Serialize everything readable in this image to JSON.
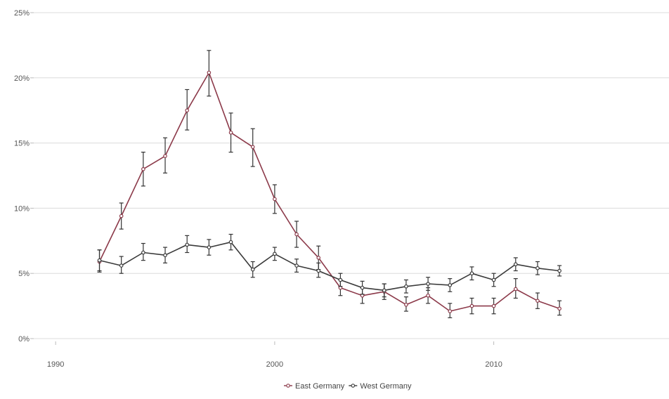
{
  "chart_data": {
    "type": "line",
    "title": "",
    "xlabel": "",
    "ylabel": "",
    "xlim": [
      1989,
      2018
    ],
    "ylim": [
      0,
      25
    ],
    "x_ticks": [
      1990,
      2000,
      2010
    ],
    "x_tick_labels": [
      "1990",
      "2000",
      "2010"
    ],
    "y_ticks": [
      0,
      5,
      10,
      15,
      20,
      25
    ],
    "y_tick_labels": [
      "0%",
      "5%",
      "10%",
      "15%",
      "20%",
      "25%"
    ],
    "grid": "horizontal",
    "legend_position": "bottom",
    "error_bars": true,
    "series": [
      {
        "name": "East Germany",
        "color": "#8c3a4a",
        "points": [
          {
            "x": 1992,
            "y": 5.9,
            "lo": 5.1,
            "hi": 6.8
          },
          {
            "x": 1993,
            "y": 9.4,
            "lo": 8.4,
            "hi": 10.4
          },
          {
            "x": 1994,
            "y": 13.0,
            "lo": 11.7,
            "hi": 14.3
          },
          {
            "x": 1995,
            "y": 14.0,
            "lo": 12.7,
            "hi": 15.4
          },
          {
            "x": 1996,
            "y": 17.5,
            "lo": 16.0,
            "hi": 19.1
          },
          {
            "x": 1997,
            "y": 20.4,
            "lo": 18.6,
            "hi": 22.1
          },
          {
            "x": 1998,
            "y": 15.8,
            "lo": 14.3,
            "hi": 17.3
          },
          {
            "x": 1999,
            "y": 14.7,
            "lo": 13.2,
            "hi": 16.1
          },
          {
            "x": 2000,
            "y": 10.7,
            "lo": 9.6,
            "hi": 11.8
          },
          {
            "x": 2001,
            "y": 8.0,
            "lo": 7.0,
            "hi": 9.0
          },
          {
            "x": 2002,
            "y": 6.2,
            "lo": 5.3,
            "hi": 7.1
          },
          {
            "x": 2003,
            "y": 3.9,
            "lo": 3.3,
            "hi": 4.5
          },
          {
            "x": 2004,
            "y": 3.3,
            "lo": 2.7,
            "hi": 3.9
          },
          {
            "x": 2005,
            "y": 3.6,
            "lo": 3.0,
            "hi": 4.2
          },
          {
            "x": 2006,
            "y": 2.6,
            "lo": 2.1,
            "hi": 3.2
          },
          {
            "x": 2007,
            "y": 3.3,
            "lo": 2.7,
            "hi": 3.9
          },
          {
            "x": 2008,
            "y": 2.1,
            "lo": 1.6,
            "hi": 2.7
          },
          {
            "x": 2009,
            "y": 2.5,
            "lo": 1.9,
            "hi": 3.1
          },
          {
            "x": 2010,
            "y": 2.5,
            "lo": 1.9,
            "hi": 3.1
          },
          {
            "x": 2011,
            "y": 3.8,
            "lo": 3.1,
            "hi": 4.6
          },
          {
            "x": 2012,
            "y": 2.9,
            "lo": 2.3,
            "hi": 3.5
          },
          {
            "x": 2013,
            "y": 2.3,
            "lo": 1.8,
            "hi": 2.9
          }
        ]
      },
      {
        "name": "West Germany",
        "color": "#3a3a3a",
        "points": [
          {
            "x": 1992,
            "y": 6.0,
            "lo": 5.2,
            "hi": 6.8
          },
          {
            "x": 1993,
            "y": 5.6,
            "lo": 5.0,
            "hi": 6.3
          },
          {
            "x": 1994,
            "y": 6.6,
            "lo": 6.0,
            "hi": 7.3
          },
          {
            "x": 1995,
            "y": 6.4,
            "lo": 5.8,
            "hi": 7.0
          },
          {
            "x": 1996,
            "y": 7.2,
            "lo": 6.6,
            "hi": 7.9
          },
          {
            "x": 1997,
            "y": 7.0,
            "lo": 6.4,
            "hi": 7.6
          },
          {
            "x": 1998,
            "y": 7.4,
            "lo": 6.8,
            "hi": 8.0
          },
          {
            "x": 1999,
            "y": 5.3,
            "lo": 4.7,
            "hi": 5.9
          },
          {
            "x": 2000,
            "y": 6.5,
            "lo": 6.0,
            "hi": 7.0
          },
          {
            "x": 2001,
            "y": 5.6,
            "lo": 5.1,
            "hi": 6.1
          },
          {
            "x": 2002,
            "y": 5.2,
            "lo": 4.7,
            "hi": 5.8
          },
          {
            "x": 2003,
            "y": 4.5,
            "lo": 4.0,
            "hi": 5.0
          },
          {
            "x": 2004,
            "y": 3.9,
            "lo": 3.4,
            "hi": 4.4
          },
          {
            "x": 2005,
            "y": 3.7,
            "lo": 3.2,
            "hi": 4.2
          },
          {
            "x": 2006,
            "y": 4.0,
            "lo": 3.5,
            "hi": 4.5
          },
          {
            "x": 2007,
            "y": 4.2,
            "lo": 3.7,
            "hi": 4.7
          },
          {
            "x": 2008,
            "y": 4.1,
            "lo": 3.6,
            "hi": 4.6
          },
          {
            "x": 2009,
            "y": 5.0,
            "lo": 4.5,
            "hi": 5.5
          },
          {
            "x": 2010,
            "y": 4.5,
            "lo": 4.0,
            "hi": 5.0
          },
          {
            "x": 2011,
            "y": 5.7,
            "lo": 5.2,
            "hi": 6.2
          },
          {
            "x": 2012,
            "y": 5.4,
            "lo": 4.9,
            "hi": 5.9
          },
          {
            "x": 2013,
            "y": 5.2,
            "lo": 4.8,
            "hi": 5.6
          }
        ]
      }
    ]
  }
}
